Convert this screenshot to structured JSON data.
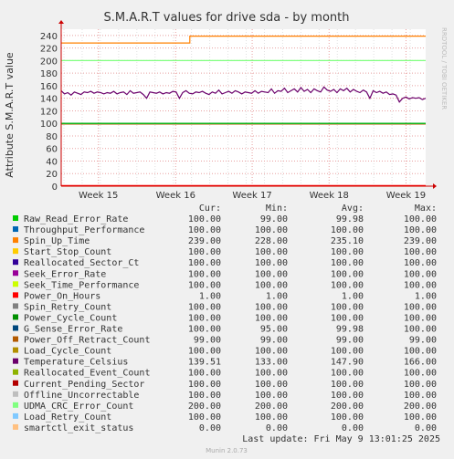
{
  "title": "S.M.A.R.T values for drive sda - by month",
  "side_label": "RRDTOOL / TOBI OETIKER",
  "footer": "Munin 2.0.73",
  "last_update": "Last update: Fri May  9 13:01:25 2025",
  "legend_headers": {
    "cur": "Cur:",
    "min": "Min:",
    "avg": "Avg:",
    "max": "Max:"
  },
  "colors": {
    "background": "#f0f0f0",
    "canvas": "#ffffff",
    "grid_major": "#e8a0a0",
    "grid_minor": "#e0e0e0",
    "axis": "#cc0000"
  },
  "chart_data": {
    "type": "line",
    "title": "S.M.A.R.T values for drive sda - by month",
    "ylabel": "Attribute S.M.A.R.T value",
    "ylim": [
      0,
      250
    ],
    "y_ticks": [
      0,
      20,
      40,
      60,
      80,
      100,
      120,
      140,
      160,
      180,
      200,
      220,
      240
    ],
    "x_ticks": [
      "Week 15",
      "Week 16",
      "Week 17",
      "Week 18",
      "Week 19"
    ],
    "grid": true,
    "series": [
      {
        "name": "Raw_Read_Error_Rate",
        "color": "#00cc00",
        "cur": "100.00",
        "min": "99.00",
        "avg": "99.98",
        "max": "100.00",
        "values": [
          100,
          100,
          100,
          100,
          100
        ]
      },
      {
        "name": "Throughput_Performance",
        "color": "#0066b3",
        "cur": "100.00",
        "min": "100.00",
        "avg": "100.00",
        "max": "100.00",
        "values": [
          100,
          100,
          100,
          100,
          100
        ]
      },
      {
        "name": "Spin_Up_Time",
        "color": "#ff8000",
        "cur": "239.00",
        "min": "228.00",
        "avg": "235.10",
        "max": "239.00",
        "values": [
          228,
          228,
          239,
          239,
          239,
          239
        ]
      },
      {
        "name": "Start_Stop_Count",
        "color": "#ffcc00",
        "cur": "100.00",
        "min": "100.00",
        "avg": "100.00",
        "max": "100.00",
        "values": [
          100,
          100,
          100,
          100,
          100
        ]
      },
      {
        "name": "Reallocated_Sector_Ct",
        "color": "#330099",
        "cur": "100.00",
        "min": "100.00",
        "avg": "100.00",
        "max": "100.00",
        "values": [
          100,
          100,
          100,
          100,
          100
        ]
      },
      {
        "name": "Seek_Error_Rate",
        "color": "#990099",
        "cur": "100.00",
        "min": "100.00",
        "avg": "100.00",
        "max": "100.00",
        "values": [
          100,
          100,
          100,
          100,
          100
        ]
      },
      {
        "name": "Seek_Time_Performance",
        "color": "#ccff00",
        "cur": "100.00",
        "min": "100.00",
        "avg": "100.00",
        "max": "100.00",
        "values": [
          100,
          100,
          100,
          100,
          100
        ]
      },
      {
        "name": "Power_On_Hours",
        "color": "#ff0000",
        "cur": "1.00",
        "min": "1.00",
        "avg": "1.00",
        "max": "1.00",
        "values": [
          1,
          1,
          1,
          1,
          1
        ]
      },
      {
        "name": "Spin_Retry_Count",
        "color": "#808080",
        "cur": "100.00",
        "min": "100.00",
        "avg": "100.00",
        "max": "100.00",
        "values": [
          100,
          100,
          100,
          100,
          100
        ]
      },
      {
        "name": "Power_Cycle_Count",
        "color": "#008f00",
        "cur": "100.00",
        "min": "100.00",
        "avg": "100.00",
        "max": "100.00",
        "values": [
          100,
          100,
          100,
          100,
          100
        ]
      },
      {
        "name": "G_Sense_Error_Rate",
        "color": "#00487d",
        "cur": "100.00",
        "min": "95.00",
        "avg": "99.98",
        "max": "100.00",
        "values": [
          100,
          100,
          100,
          100,
          100
        ]
      },
      {
        "name": "Power_Off_Retract_Count",
        "color": "#b35a00",
        "cur": "99.00",
        "min": "99.00",
        "avg": "99.00",
        "max": "99.00",
        "values": [
          99,
          99,
          99,
          99,
          99
        ]
      },
      {
        "name": "Load_Cycle_Count",
        "color": "#b38f00",
        "cur": "100.00",
        "min": "100.00",
        "avg": "100.00",
        "max": "100.00",
        "values": [
          100,
          100,
          100,
          100,
          100
        ]
      },
      {
        "name": "Temperature_Celsius",
        "color": "#6b006b",
        "cur": "139.51",
        "min": "133.00",
        "avg": "147.90",
        "max": "166.00",
        "values": [
          152,
          147,
          149,
          145,
          150,
          148,
          146,
          150,
          149,
          151,
          148,
          150,
          149,
          147,
          149,
          148,
          151,
          147,
          149,
          150,
          146,
          152,
          148,
          149,
          150,
          146,
          140,
          150,
          149,
          148,
          150,
          147,
          149,
          148,
          151,
          150,
          140,
          149,
          152,
          148,
          147,
          150,
          149,
          151,
          148,
          146,
          150,
          148,
          153,
          147,
          149,
          151,
          148,
          152,
          150,
          147,
          150,
          149,
          148,
          152,
          148,
          151,
          150,
          149,
          155,
          148,
          152,
          151,
          156,
          149,
          152,
          155,
          150,
          157,
          151,
          154,
          149,
          155,
          152,
          150,
          158,
          153,
          151,
          154,
          149,
          155,
          152,
          156,
          150,
          154,
          151,
          149,
          153,
          150,
          140,
          152,
          149,
          151,
          148,
          150,
          146,
          147,
          145,
          134,
          140,
          142,
          139,
          141,
          140,
          141,
          138,
          140
        ]
      },
      {
        "name": "Reallocated_Event_Count",
        "color": "#8fb300",
        "cur": "100.00",
        "min": "100.00",
        "avg": "100.00",
        "max": "100.00",
        "values": [
          100,
          100,
          100,
          100,
          100
        ]
      },
      {
        "name": "Current_Pending_Sector",
        "color": "#b30000",
        "cur": "100.00",
        "min": "100.00",
        "avg": "100.00",
        "max": "100.00",
        "values": [
          100,
          100,
          100,
          100,
          100
        ]
      },
      {
        "name": "Offline_Uncorrectable",
        "color": "#bebebe",
        "cur": "100.00",
        "min": "100.00",
        "avg": "100.00",
        "max": "100.00",
        "values": [
          100,
          100,
          100,
          100,
          100
        ]
      },
      {
        "name": "UDMA_CRC_Error_Count",
        "color": "#80ff80",
        "cur": "200.00",
        "min": "200.00",
        "avg": "200.00",
        "max": "200.00",
        "values": [
          200,
          200,
          200,
          200,
          200
        ]
      },
      {
        "name": "Load_Retry_Count",
        "color": "#80c9ff",
        "cur": "100.00",
        "min": "100.00",
        "avg": "100.00",
        "max": "100.00",
        "values": [
          100,
          100,
          100,
          100,
          100
        ]
      },
      {
        "name": "smartctl_exit_status",
        "color": "#ffc080",
        "cur": "0.00",
        "min": "0.00",
        "avg": "0.00",
        "max": "0.00",
        "values": [
          0,
          0,
          0,
          0,
          0
        ]
      }
    ]
  }
}
